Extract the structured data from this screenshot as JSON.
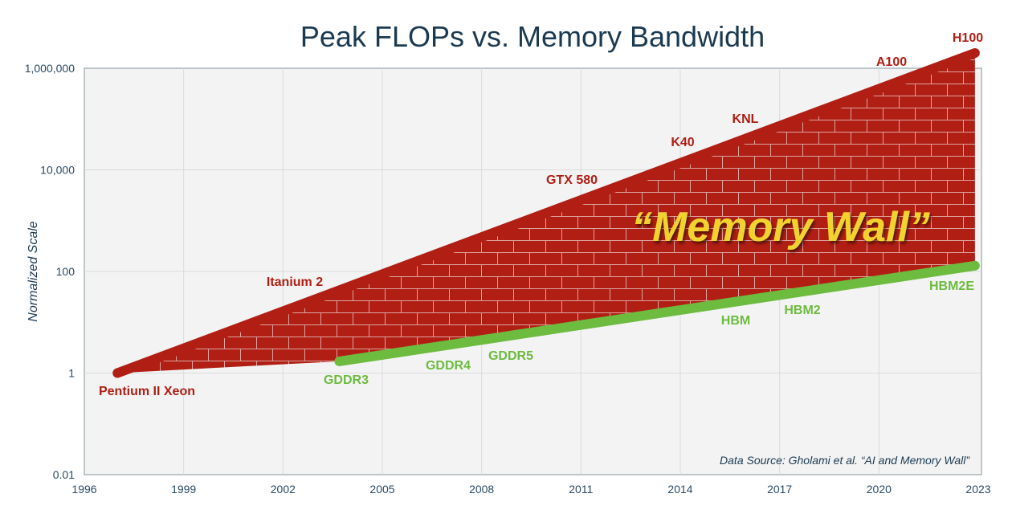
{
  "chart_data": {
    "type": "line",
    "title": "Peak FLOPs vs. Memory Bandwidth",
    "xlabel": "",
    "ylabel": "Normalized Scale",
    "y_scale": "log",
    "xlim": [
      1996,
      2023
    ],
    "ylim": [
      0.01,
      1000000
    ],
    "x_ticks": [
      "1996",
      "1999",
      "2002",
      "2005",
      "2008",
      "2011",
      "2014",
      "2017",
      "2020",
      "2023"
    ],
    "y_ticks": [
      "0.01",
      "1",
      "100",
      "10,000",
      "1,000,000"
    ],
    "grid": true,
    "series": [
      {
        "color": "#b01e14",
        "points": [
          [
            1997.0,
            1
          ],
          [
            2022.9,
            2000000
          ]
        ],
        "labels": [
          "Pentium II Xeon",
          "Itanium 2",
          "GTX 580",
          "K40",
          "KNL",
          "A100",
          "H100"
        ]
      },
      {
        "color": "#6dbb3f",
        "points": [
          [
            2003.7,
            1.7
          ],
          [
            2022.9,
            130
          ]
        ],
        "labels": [
          "GDDR3",
          "GDDR4",
          "GDDR5",
          "HBM",
          "HBM2",
          "HBM2E"
        ]
      }
    ],
    "annotations": {
      "wall": "“Memory Wall”",
      "source": "Data Source: Gholami et al. “AI and Memory Wall”"
    },
    "colors": {
      "flops": "#b01e14",
      "bandwidth": "#6dbb3f",
      "wall_text": "#f2d22e",
      "title": "#1b3a52"
    }
  }
}
